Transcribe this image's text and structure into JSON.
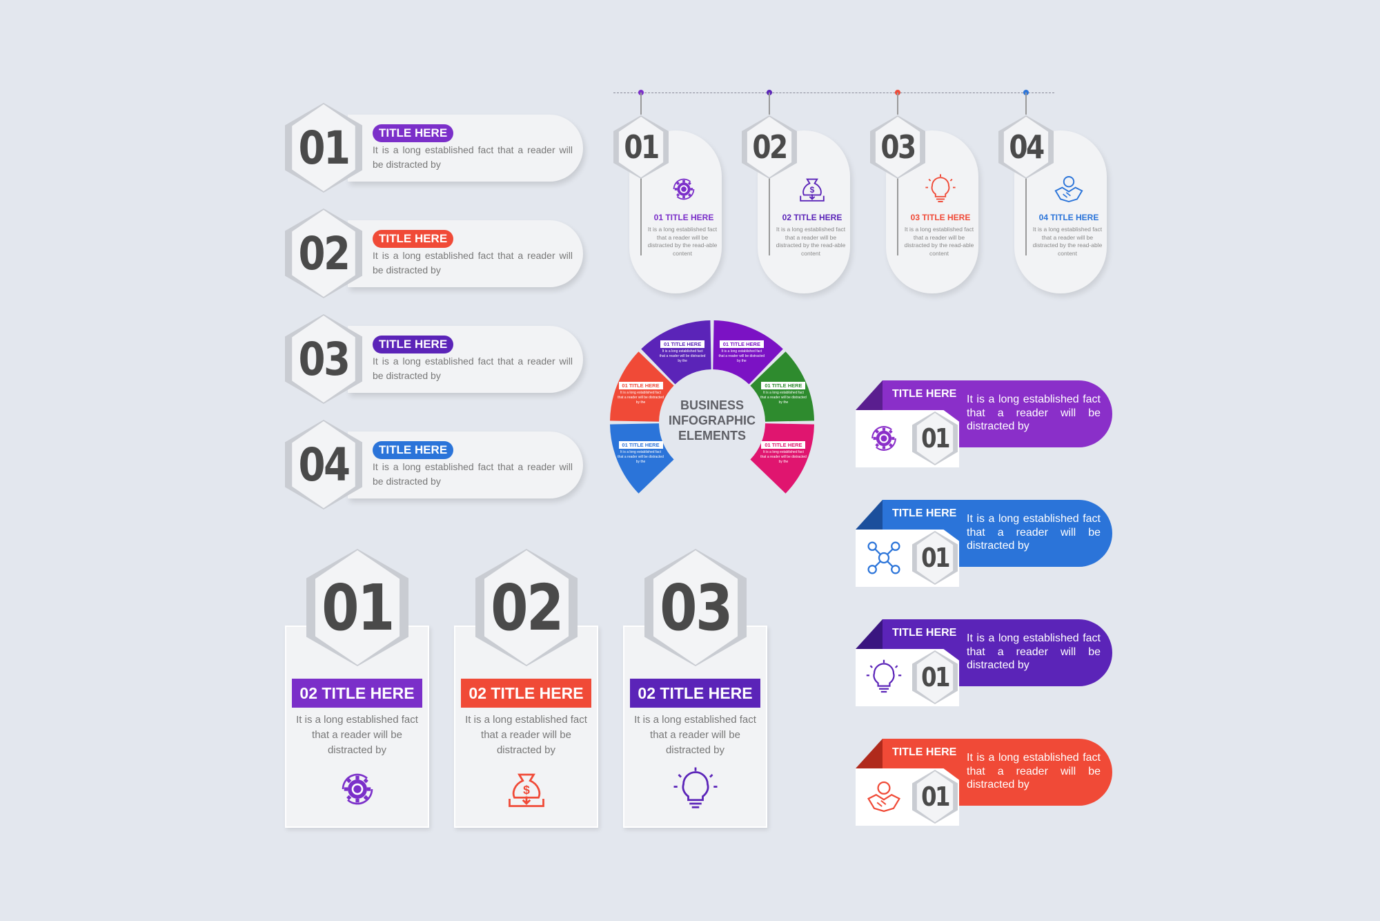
{
  "colors": {
    "purple": "#7b2fc9",
    "red": "#f04a37",
    "indigo": "#5b24b8",
    "blue": "#2b74d9",
    "green": "#2e8b2e",
    "pink": "#e0156f",
    "gray_text": "#555555",
    "background": "#e3e7ee"
  },
  "left_steps": [
    {
      "number": "01",
      "title": "TITLE HERE",
      "text": "It is a long established fact that a reader will be distracted by",
      "color": "#7b2fc9"
    },
    {
      "number": "02",
      "title": "TITLE HERE",
      "text": "It is a long established fact that a reader will be distracted by",
      "color": "#f04a37"
    },
    {
      "number": "03",
      "title": "TITLE HERE",
      "text": "It is a long established fact that a reader will be distracted by",
      "color": "#5b24b8"
    },
    {
      "number": "04",
      "title": "TITLE HERE",
      "text": "It is a long established fact that a reader will be distracted by",
      "color": "#2b74d9"
    }
  ],
  "top_cards": [
    {
      "number": "01",
      "title": "01 TITLE HERE",
      "text": "It is a long established fact that a reader will be distracted by the read-able content",
      "color": "#7b2fc9",
      "icon": "gear-cycle-icon"
    },
    {
      "number": "02",
      "title": "02 TITLE HERE",
      "text": "It is a long established fact that a reader will be distracted by the read-able content",
      "color": "#5b24b8",
      "icon": "money-bag-icon"
    },
    {
      "number": "03",
      "title": "03 TITLE HERE",
      "text": "It is a long established fact that a reader will be distracted by the read-able content",
      "color": "#f04a37",
      "icon": "lightbulb-icon"
    },
    {
      "number": "04",
      "title": "04 TITLE HERE",
      "text": "It is a long established fact that a reader will be distracted by the read-able content",
      "color": "#2b74d9",
      "icon": "handshake-icon"
    }
  ],
  "wheel": {
    "center_lines": [
      "BUSINESS",
      "INFOGRAPHIC",
      "ELEMENTS"
    ],
    "segments": [
      {
        "title": "01 TITLE HERE",
        "text": "It is a long established fact that a reader will be distracted by the",
        "color": "#2b74d9"
      },
      {
        "title": "01 TITLE HERE",
        "text": "It is a long established fact that a reader will be distracted by the",
        "color": "#f04a37"
      },
      {
        "title": "01 TITLE HERE",
        "text": "It is a long established fact that a reader will be distracted by the",
        "color": "#5b24b8"
      },
      {
        "title": "01 TITLE HERE",
        "text": "It is a long established fact that a reader will be distracted by the",
        "color": "#7b12c4"
      },
      {
        "title": "01 TITLE HERE",
        "text": "It is a long established fact that a reader will be distracted by the",
        "color": "#2e8b2e"
      },
      {
        "title": "01 TITLE HERE",
        "text": "It is a long established fact that a reader will be distracted by the",
        "color": "#e0156f"
      }
    ]
  },
  "bottom_boxes": [
    {
      "number": "01",
      "title": "02 TITLE HERE",
      "text": "It is a long established fact that a reader will be distracted by",
      "color": "#7b2fc9",
      "icon": "gear-cycle-icon"
    },
    {
      "number": "02",
      "title": "02 TITLE HERE",
      "text": "It is a long established fact that a reader will be distracted by",
      "color": "#f04a37",
      "icon": "money-bag-icon"
    },
    {
      "number": "03",
      "title": "02 TITLE HERE",
      "text": "It is a long established fact that a reader will be distracted by",
      "color": "#5b24b8",
      "icon": "lightbulb-icon"
    }
  ],
  "right_cards": [
    {
      "number": "01",
      "title": "TITLE HERE",
      "text": "It is a long established fact that a reader will be distracted by",
      "color": "#8a2fc9",
      "dark": "#5a1e8f",
      "icon": "gear-cycle-icon"
    },
    {
      "number": "01",
      "title": "TITLE HERE",
      "text": "It is a long established fact that a reader will be distracted by",
      "color": "#2b74d9",
      "dark": "#1b4f9c",
      "icon": "network-icon"
    },
    {
      "number": "01",
      "title": "TITLE HERE",
      "text": "It is a long established fact that a reader will be distracted by",
      "color": "#5b24b8",
      "dark": "#3a1580",
      "icon": "lightbulb-icon"
    },
    {
      "number": "01",
      "title": "TITLE HERE",
      "text": "It is a long established fact that a reader will be distracted by",
      "color": "#f04a37",
      "dark": "#b02a1c",
      "icon": "handshake-icon"
    }
  ]
}
